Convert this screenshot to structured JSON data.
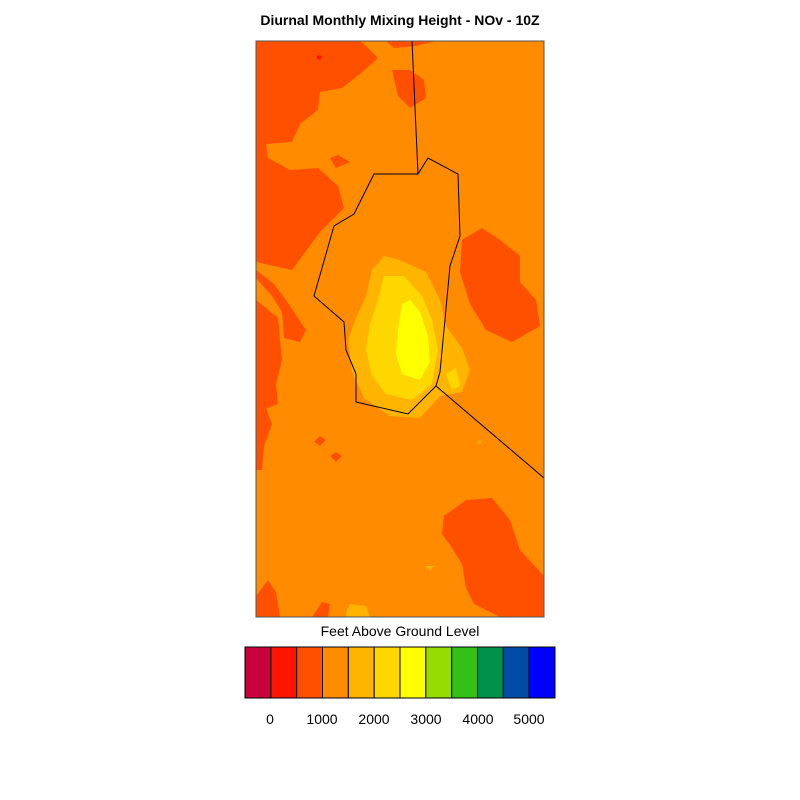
{
  "title": "Diurnal Monthly Mixing Height - NOv - 10Z",
  "legend": {
    "title": "Feet Above Ground Level",
    "colors": [
      "#c8003c",
      "#ff1400",
      "#ff5000",
      "#ff8c00",
      "#ffb400",
      "#ffd700",
      "#ffff00",
      "#96dc00",
      "#32c014",
      "#00914b",
      "#004ba5",
      "#0000ff"
    ],
    "tick_labels": [
      "0",
      "1000",
      "2000",
      "3000",
      "4000",
      "5000"
    ]
  },
  "map": {
    "background_color": "#ff8c00",
    "low_region_color": "#ff5000",
    "mid_region_colors": [
      "#ffb400",
      "#ffd700",
      "#ffff00"
    ],
    "boundary_color": "#000000"
  }
}
